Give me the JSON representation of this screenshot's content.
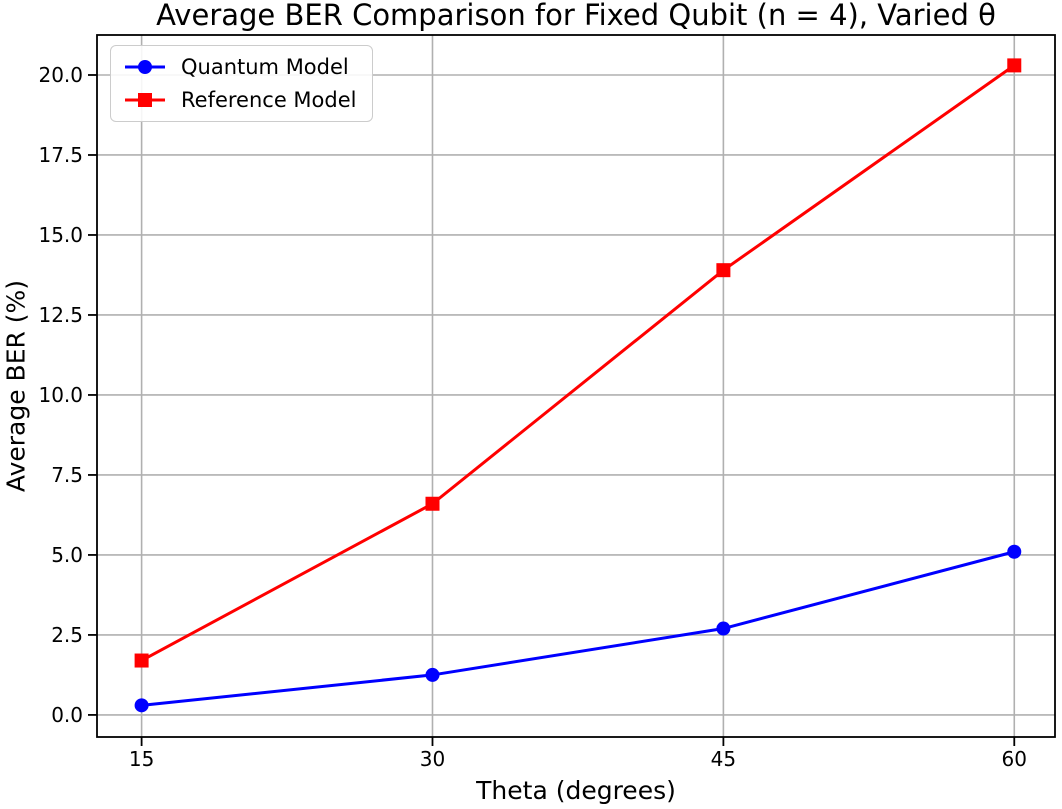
{
  "chart_data": {
    "type": "line",
    "title": "Average BER Comparison for Fixed Qubit (n = 4), Varied θ",
    "xlabel": "Theta (degrees)",
    "ylabel": "Average BER (%)",
    "x": [
      15,
      30,
      45,
      60
    ],
    "series": [
      {
        "name": "Quantum Model",
        "color": "#0000ff",
        "marker": "circle",
        "values": [
          0.3,
          1.25,
          2.7,
          5.1
        ]
      },
      {
        "name": "Reference Model",
        "color": "#ff0000",
        "marker": "square",
        "values": [
          1.7,
          6.6,
          13.9,
          20.3
        ]
      }
    ],
    "xticks": [
      15,
      30,
      45,
      60
    ],
    "xtick_labels": [
      "15",
      "30",
      "45",
      "60"
    ],
    "yticks": [
      0,
      2.5,
      5,
      7.5,
      10,
      12.5,
      15,
      17.5,
      20
    ],
    "ytick_labels": [
      "0.0",
      "2.5",
      "5.0",
      "7.5",
      "10.0",
      "12.5",
      "15.0",
      "17.5",
      "20.0"
    ],
    "xlim": [
      12.7,
      62.1
    ],
    "ylim": [
      -0.69,
      21.25
    ],
    "grid": true,
    "grid_color": "#b0b0b0",
    "axis_color": "#000000",
    "background_color": "#ffffff",
    "legend_position": "upper left"
  }
}
